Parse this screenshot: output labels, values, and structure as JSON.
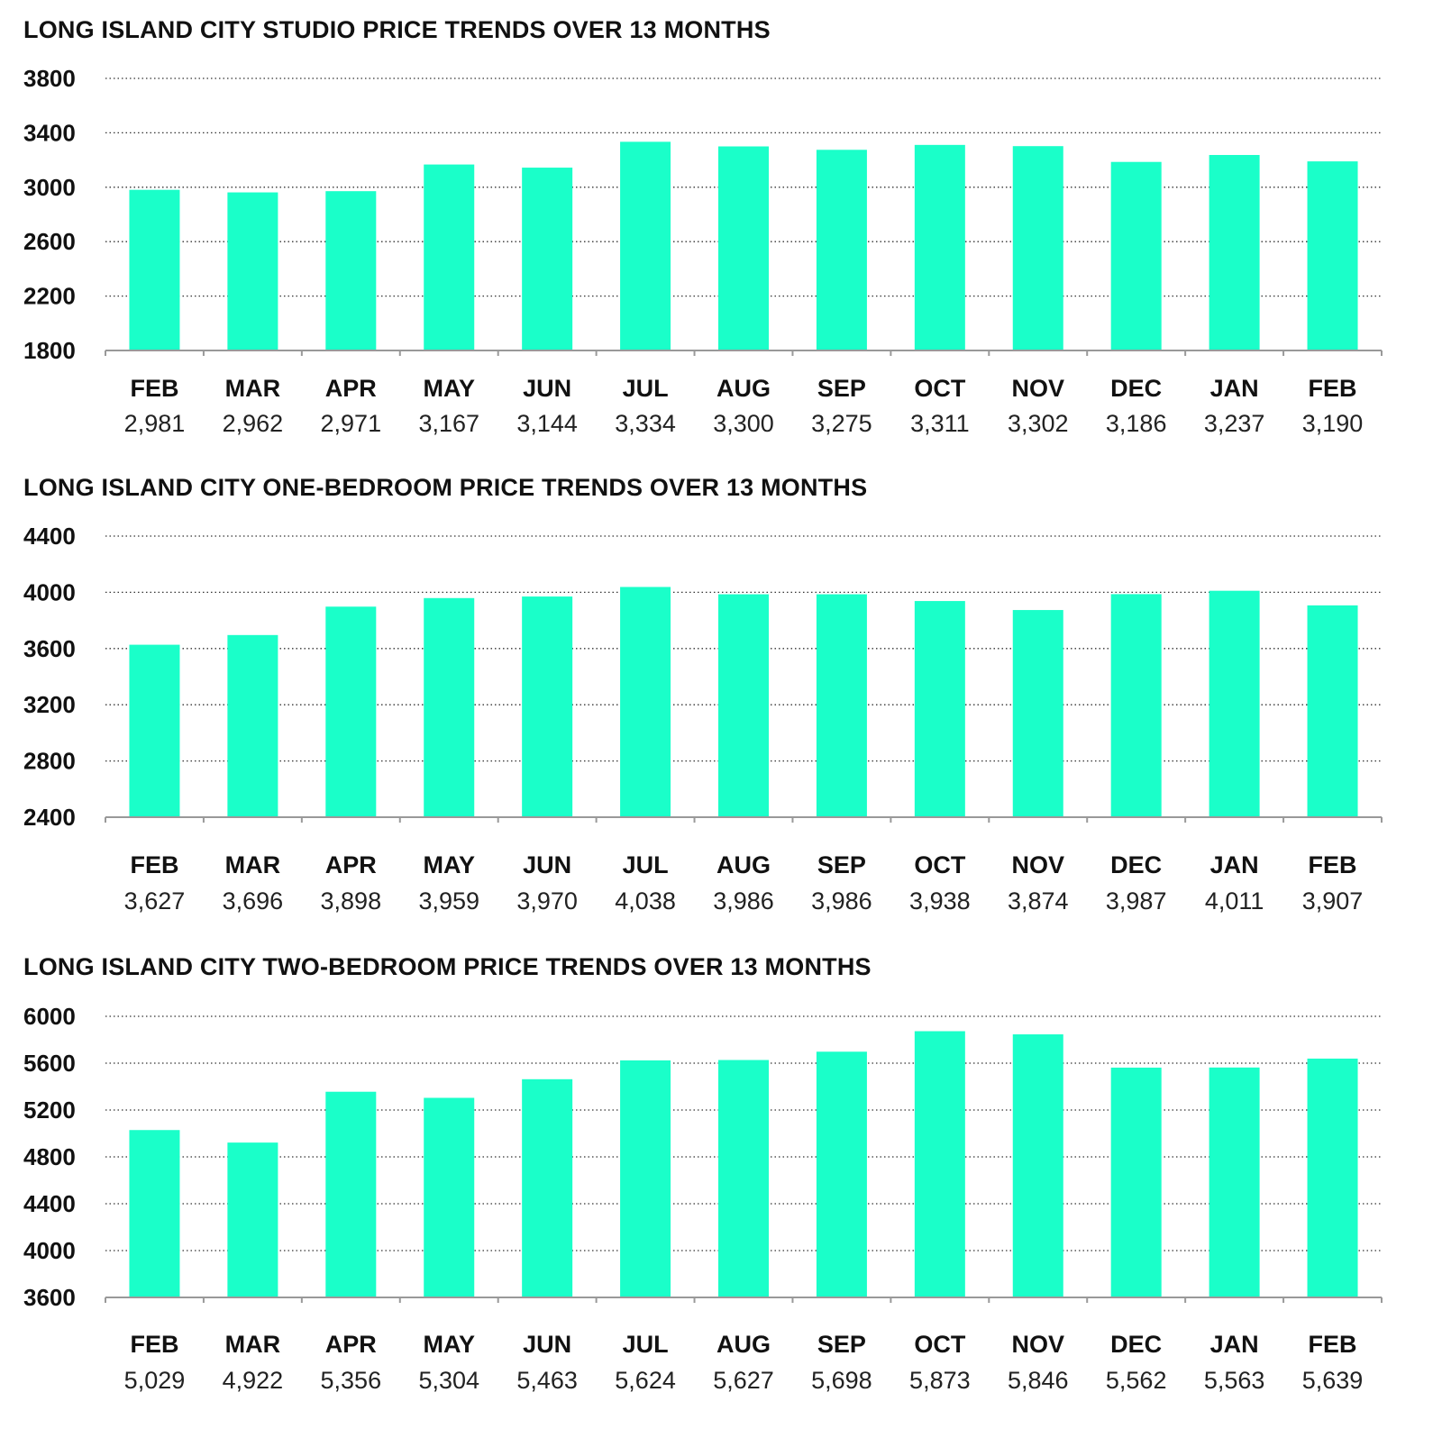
{
  "colors": {
    "bar": "#1affc9",
    "grid": "#333333",
    "axis": "#999999"
  },
  "chart_data": [
    {
      "type": "bar",
      "title": "LONG ISLAND CITY STUDIO PRICE TRENDS OVER 13 MONTHS",
      "categories": [
        "FEB",
        "MAR",
        "APR",
        "MAY",
        "JUN",
        "JUL",
        "AUG",
        "SEP",
        "OCT",
        "NOV",
        "DEC",
        "JAN",
        "FEB"
      ],
      "values": [
        2981,
        2962,
        2971,
        3167,
        3144,
        3334,
        3300,
        3275,
        3311,
        3302,
        3186,
        3237,
        3190
      ],
      "value_labels": [
        "2,981",
        "2,962",
        "2,971",
        "3,167",
        "3,144",
        "3,334",
        "3,300",
        "3,275",
        "3,311",
        "3,302",
        "3,186",
        "3,237",
        "3,190"
      ],
      "ylim": [
        1800,
        3800
      ],
      "yticks": [
        1800,
        2200,
        2600,
        3000,
        3400,
        3800
      ],
      "grid": "dotted horizontal"
    },
    {
      "type": "bar",
      "title": "LONG ISLAND CITY ONE-BEDROOM PRICE TRENDS OVER 13 MONTHS",
      "categories": [
        "FEB",
        "MAR",
        "APR",
        "MAY",
        "JUN",
        "JUL",
        "AUG",
        "SEP",
        "OCT",
        "NOV",
        "DEC",
        "JAN",
        "FEB"
      ],
      "values": [
        3627,
        3696,
        3898,
        3959,
        3970,
        4038,
        3986,
        3986,
        3938,
        3874,
        3987,
        4011,
        3907
      ],
      "value_labels": [
        "3,627",
        "3,696",
        "3,898",
        "3,959",
        "3,970",
        "4,038",
        "3,986",
        "3,986",
        "3,938",
        "3,874",
        "3,987",
        "4,011",
        "3,907"
      ],
      "ylim": [
        2400,
        4400
      ],
      "yticks": [
        2400,
        2800,
        3200,
        3600,
        4000,
        4400
      ],
      "grid": "dotted horizontal"
    },
    {
      "type": "bar",
      "title": "LONG ISLAND CITY TWO-BEDROOM PRICE TRENDS OVER 13 MONTHS",
      "categories": [
        "FEB",
        "MAR",
        "APR",
        "MAY",
        "JUN",
        "JUL",
        "AUG",
        "SEP",
        "OCT",
        "NOV",
        "DEC",
        "JAN",
        "FEB"
      ],
      "values": [
        5029,
        4922,
        5356,
        5304,
        5463,
        5624,
        5627,
        5698,
        5873,
        5846,
        5562,
        5563,
        5639
      ],
      "value_labels": [
        "5,029",
        "4,922",
        "5,356",
        "5,304",
        "5,463",
        "5,624",
        "5,627",
        "5,698",
        "5,873",
        "5,846",
        "5,562",
        "5,563",
        "5,639"
      ],
      "ylim": [
        3600,
        6000
      ],
      "yticks": [
        3600,
        4000,
        4400,
        4800,
        5200,
        5600,
        6000
      ],
      "grid": "dotted horizontal"
    }
  ]
}
